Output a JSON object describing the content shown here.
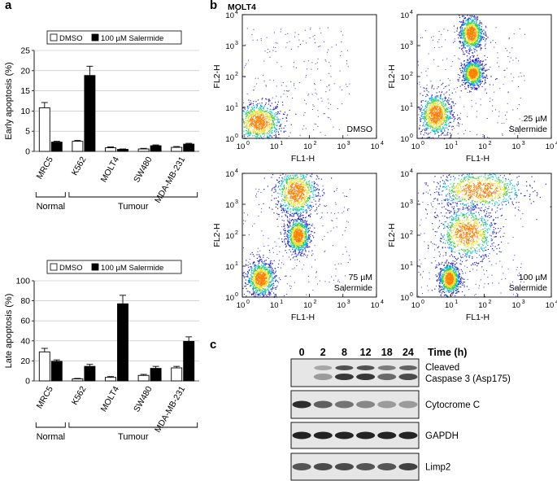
{
  "panels": {
    "a": "a",
    "b": "b",
    "c": "c"
  },
  "chart_data": [
    {
      "type": "bar",
      "panel": "a",
      "ylabel": "Early apoptosis (%)",
      "ylim": [
        0,
        25
      ],
      "yticks": [
        0,
        5,
        10,
        15,
        20,
        25
      ],
      "categories": [
        "MRC5",
        "K562",
        "MOLT4",
        "SW480",
        "MDA-MB-231"
      ],
      "series": [
        {
          "name": "DMSO",
          "color": "#ffffff",
          "values": [
            10.8,
            2.5,
            0.9,
            0.6,
            1.0
          ],
          "errors": [
            1.3,
            0.2,
            0.2,
            0.15,
            0.2
          ]
        },
        {
          "name": "100 µM Salermide",
          "color": "#000000",
          "values": [
            2.3,
            18.8,
            0.5,
            1.4,
            1.8
          ],
          "errors": [
            0.2,
            2.3,
            0.1,
            0.2,
            0.2
          ]
        }
      ],
      "groups": [
        {
          "label": "Normal",
          "from": 0,
          "to": 0
        },
        {
          "label": "Tumour",
          "from": 1,
          "to": 4
        }
      ]
    },
    {
      "type": "bar",
      "panel": "a",
      "ylabel": "Late apoptosis (%)",
      "ylim": [
        0,
        100
      ],
      "yticks": [
        0,
        20,
        40,
        60,
        80,
        100
      ],
      "categories": [
        "MRC5",
        "K562",
        "MOLT4",
        "SW480",
        "MDA-MB-231"
      ],
      "series": [
        {
          "name": "DMSO",
          "color": "#ffffff",
          "values": [
            29,
            2,
            3.5,
            5.5,
            13
          ],
          "errors": [
            3.5,
            0.5,
            0.8,
            1,
            1.5
          ]
        },
        {
          "name": "100 µM Salermide",
          "color": "#000000",
          "values": [
            19.5,
            14.5,
            77,
            12.5,
            39.5
          ],
          "errors": [
            1.5,
            2,
            8.5,
            2,
            4.5
          ]
        }
      ],
      "groups": [
        {
          "label": "Normal",
          "from": 0,
          "to": 0
        },
        {
          "label": "Tumour",
          "from": 1,
          "to": 4
        }
      ]
    },
    {
      "type": "scatter",
      "panel": "b",
      "title": "MOLT4",
      "xlabel": "FL1-H",
      "ylabel": "FL2-H",
      "xscale": "log",
      "yscale": "log",
      "xlim": [
        1,
        10000
      ],
      "ylim": [
        1,
        10000
      ],
      "ticks": [
        "10",
        "10",
        "10",
        "10",
        "10"
      ],
      "tick_exponents": [
        "0",
        "1",
        "2",
        "3",
        "4"
      ],
      "plots": [
        {
          "labels": [
            "DMSO"
          ],
          "clusters": [
            [
              3,
              3.5,
              1.0,
              0.9
            ]
          ]
        },
        {
          "labels": [
            "25 µM",
            "Salermide"
          ],
          "clusters": [
            [
              3.5,
              6,
              0.7,
              1.0
            ],
            [
              40,
              2500,
              0.5,
              0.8
            ],
            [
              45,
              130,
              0.45,
              0.6
            ]
          ]
        },
        {
          "labels": [
            "75 µM",
            "Salermide"
          ],
          "clusters": [
            [
              3.5,
              4,
              0.6,
              0.8
            ],
            [
              40,
              2500,
              0.9,
              1.1
            ],
            [
              45,
              100,
              0.5,
              0.8
            ]
          ]
        },
        {
          "labels": [
            "100 µM",
            "Salermide"
          ],
          "clusters": [
            [
              9,
              4,
              0.45,
              0.7
            ],
            [
              70,
              3000,
              1.9,
              0.9
            ],
            [
              30,
              120,
              1.2,
              1.2
            ]
          ]
        }
      ]
    }
  ],
  "western": {
    "time_label": "Time (h)",
    "timepoints": [
      "0",
      "2",
      "8",
      "12",
      "18",
      "24"
    ],
    "blots": [
      {
        "labels": [
          "Cleaved",
          "Caspase 3 (Asp175)"
        ],
        "intensity": [
          0.0,
          0.35,
          0.85,
          0.85,
          0.6,
          0.75
        ],
        "double": true
      },
      {
        "labels": [
          "Cytocrome C"
        ],
        "intensity": [
          0.9,
          0.65,
          0.55,
          0.45,
          0.35,
          0.35
        ],
        "double": false
      },
      {
        "labels": [
          "GAPDH"
        ],
        "intensity": [
          0.95,
          0.95,
          0.95,
          0.95,
          0.95,
          0.95
        ],
        "double": false
      },
      {
        "labels": [
          "Limp2"
        ],
        "intensity": [
          0.7,
          0.75,
          0.75,
          0.7,
          0.7,
          0.8
        ],
        "double": false
      }
    ]
  }
}
